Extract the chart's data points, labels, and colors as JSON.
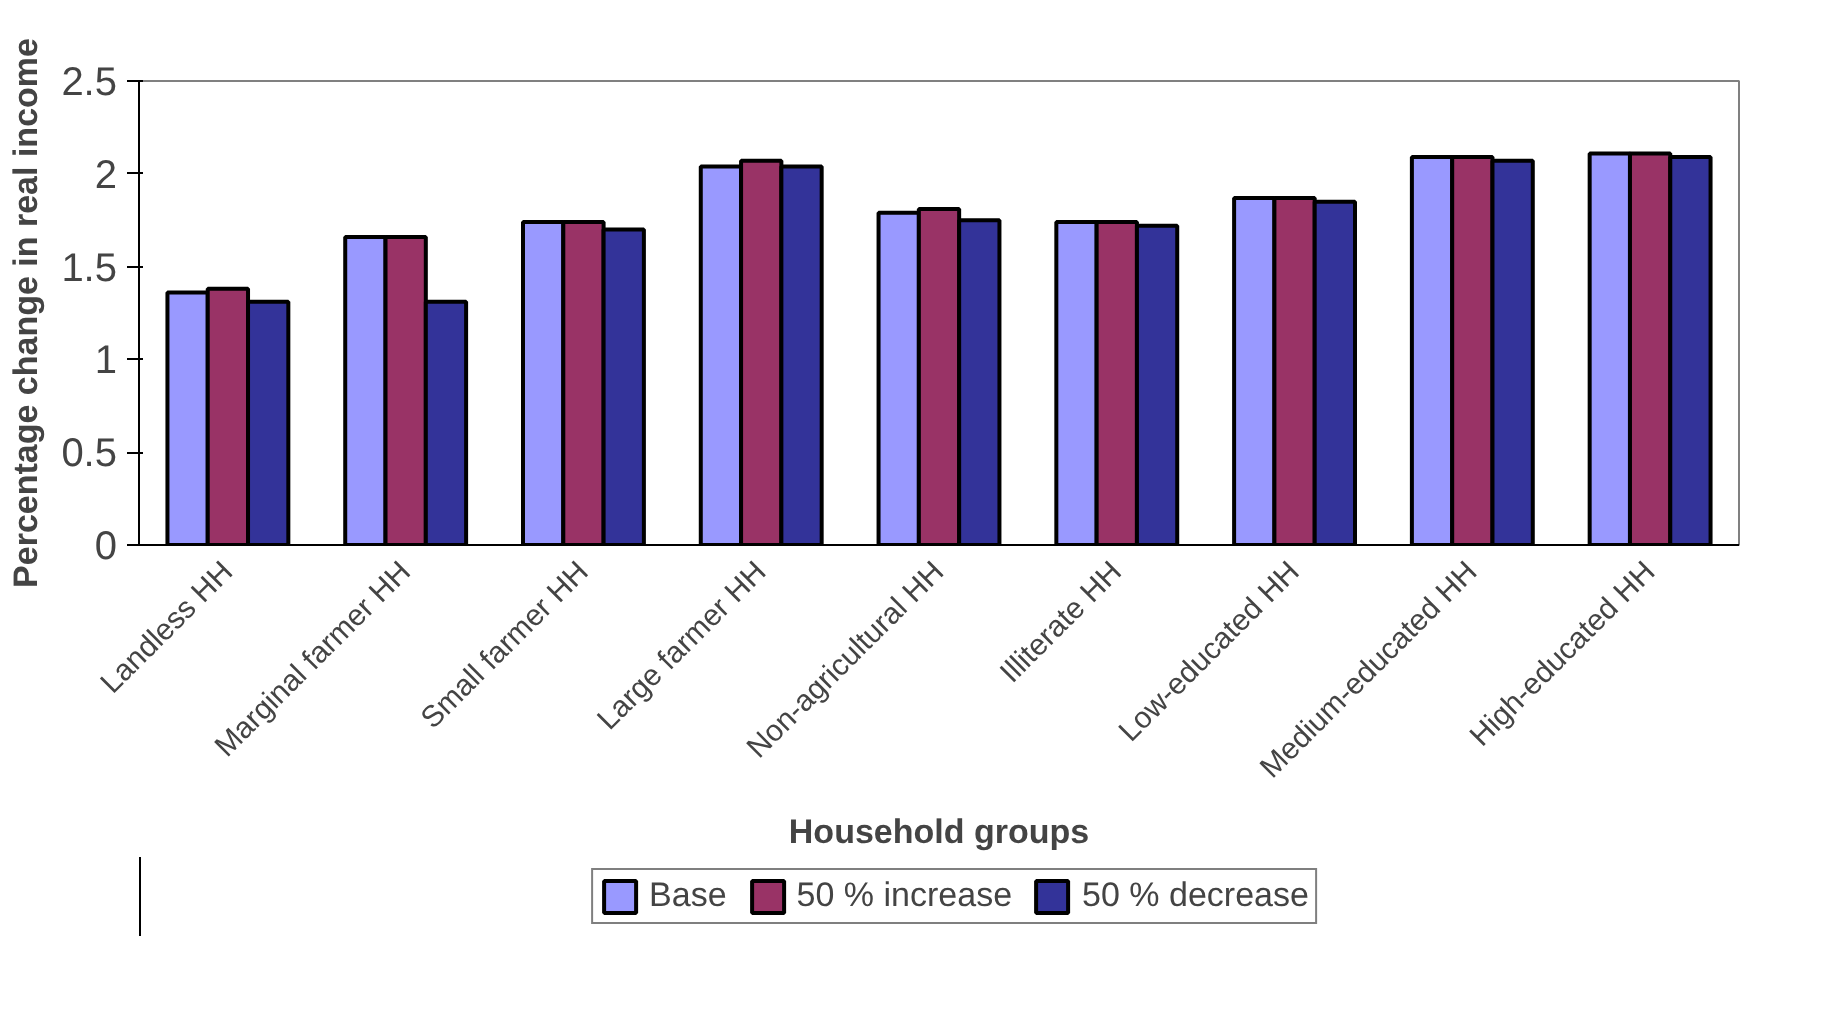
{
  "chart_data": {
    "type": "bar",
    "xlabel": "Household groups",
    "ylabel": "Percentage change in real income",
    "categories": [
      "Landless HH",
      "Marginal farmer HH",
      "Small farmer HH",
      "Large farmer HH",
      "Non-agricultural HH",
      "Illiterate HH",
      "Low-educated HH",
      "Medium-educated HH",
      "High-educated HH"
    ],
    "series": [
      {
        "name": "Base",
        "color": "#9999ff",
        "values": [
          1.36,
          1.66,
          1.74,
          2.04,
          1.79,
          1.74,
          1.87,
          2.09,
          2.11
        ]
      },
      {
        "name": "50 % increase",
        "color": "#993366",
        "values": [
          1.38,
          1.66,
          1.74,
          2.07,
          1.81,
          1.74,
          1.87,
          2.09,
          2.11
        ]
      },
      {
        "name": "50 % decrease",
        "color": "#333399",
        "values": [
          1.31,
          1.31,
          1.7,
          2.04,
          1.75,
          1.72,
          1.85,
          2.07,
          2.09
        ]
      }
    ],
    "ylim": [
      0,
      2.5
    ],
    "yticks": [
      0,
      0.5,
      1,
      1.5,
      2,
      2.5
    ],
    "grid": false,
    "legend": "bottom"
  }
}
